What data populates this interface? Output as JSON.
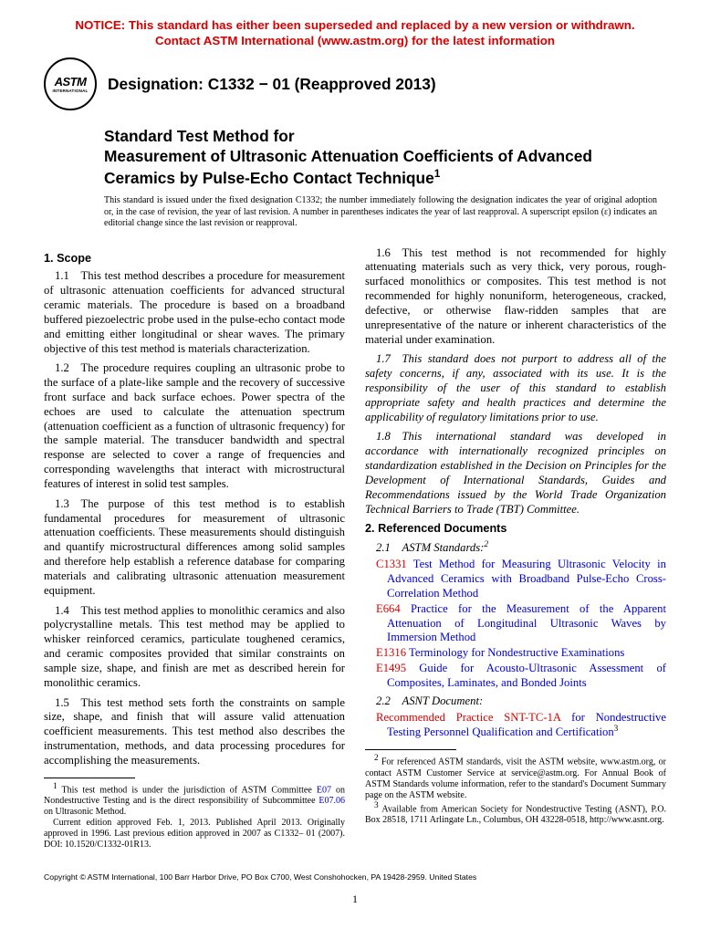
{
  "notice": {
    "line1": "NOTICE: This standard has either been superseded and replaced by a new version or withdrawn.",
    "line2": "Contact ASTM International (www.astm.org) for the latest information"
  },
  "logo": {
    "main": "ASTM",
    "sub": "INTERNATIONAL"
  },
  "designation": "Designation: C1332 − 01 (Reapproved 2013)",
  "title": {
    "pre": "Standard Test Method for",
    "main": "Measurement of Ultrasonic Attenuation Coefficients of Advanced Ceramics by Pulse-Echo Contact Technique",
    "sup": "1"
  },
  "issuance": "This standard is issued under the fixed designation C1332; the number immediately following the designation indicates the year of original adoption or, in the case of revision, the year of last revision. A number in parentheses indicates the year of last reapproval. A superscript epsilon (ε) indicates an editorial change since the last revision or reapproval.",
  "sections": {
    "scope_heading": "1. Scope",
    "p1_1": "1.1 This test method describes a procedure for measurement of ultrasonic attenuation coefficients for advanced structural ceramic materials. The procedure is based on a broadband buffered piezoelectric probe used in the pulse-echo contact mode and emitting either longitudinal or shear waves. The primary objective of this test method is materials characterization.",
    "p1_2": "1.2 The procedure requires coupling an ultrasonic probe to the surface of a plate-like sample and the recovery of successive front surface and back surface echoes. Power spectra of the echoes are used to calculate the attenuation spectrum (attenuation coefficient as a function of ultrasonic frequency) for the sample material. The transducer bandwidth and spectral response are selected to cover a range of frequencies and corresponding wavelengths that interact with microstructural features of interest in solid test samples.",
    "p1_3": "1.3 The purpose of this test method is to establish fundamental procedures for measurement of ultrasonic attenuation coefficients. These measurements should distinguish and quantify microstructural differences among solid samples and therefore help establish a reference database for comparing materials and calibrating ultrasonic attenuation measurement equipment.",
    "p1_4": "1.4 This test method applies to monolithic ceramics and also polycrystalline metals. This test method may be applied to whisker reinforced ceramics, particulate toughened ceramics, and ceramic composites provided that similar constraints on sample size, shape, and finish are met as described herein for monolithic ceramics.",
    "p1_5": "1.5 This test method sets forth the constraints on sample size, shape, and finish that will assure valid attenuation coefficient measurements. This test method also describes the instrumentation, methods, and data processing procedures for accomplishing the measurements.",
    "p1_6": "1.6 This test method is not recommended for highly attenuating materials such as very thick, very porous, rough-surfaced monolithics or composites. This test method is not recommended for highly nonuniform, heterogeneous, cracked, defective, or otherwise flaw-ridden samples that are unrepresentative of the nature or inherent characteristics of the material under examination.",
    "p1_7": "1.7 This standard does not purport to address all of the safety concerns, if any, associated with its use. It is the responsibility of the user of this standard to establish appropriate safety and health practices and determine the applicability of regulatory limitations prior to use.",
    "p1_8": "1.8 This international standard was developed in accordance with internationally recognized principles on standardization established in the Decision on Principles for the Development of International Standards, Guides and Recommendations issued by the World Trade Organization Technical Barriers to Trade (TBT) Committee.",
    "refdocs_heading": "2. Referenced Documents",
    "astm_sub": "2.1 ASTM Standards:",
    "astm_sup": "2",
    "asnt_sub": "2.2 ASNT Document:",
    "refs": [
      {
        "code": "C1331",
        "text": " Test Method for Measuring Ultrasonic Velocity in Advanced Ceramics with Broadband Pulse-Echo Cross-Correlation Method"
      },
      {
        "code": "E664",
        "text": " Practice for the Measurement of the Apparent Attenuation of Longitudinal Ultrasonic Waves by Immersion Method"
      },
      {
        "code": "E1316",
        "text": " Terminology for Nondestructive Examinations"
      },
      {
        "code": "E1495",
        "text": " Guide for Acousto-Ultrasonic Assessment of Composites, Laminates, and Bonded Joints"
      }
    ],
    "asnt_ref": {
      "code": "Recommended Practice SNT-TC-1A",
      "text": " for Nondestructive Testing Personnel Qualification and Certification",
      "sup": "3"
    }
  },
  "footnotes": {
    "f1_a": "This test method is under the jurisdiction of ASTM Committee ",
    "f1_link1": "E07",
    "f1_b": " on Nondestructive Testing and is the direct responsibility of Subcommittee ",
    "f1_link2": "E07.06",
    "f1_c": " on Ultrasonic Method.",
    "f1_para2": "Current edition approved Feb. 1, 2013. Published April 2013. Originally approved in 1996. Last previous edition approved in 2007 as C1332– 01 (2007). DOI: 10.1520/C1332-01R13.",
    "f2": "For referenced ASTM standards, visit the ASTM website, www.astm.org, or contact ASTM Customer Service at service@astm.org. For Annual Book of ASTM Standards volume information, refer to the standard's Document Summary page on the ASTM website.",
    "f3": "Available from American Society for Nondestructive Testing (ASNT), P.O. Box 28518, 1711 Arlingate Ln., Columbus, OH 43228-0518, http://www.asnt.org."
  },
  "copyright": "Copyright © ASTM International, 100 Barr Harbor Drive, PO Box C700, West Conshohocken, PA 19428-2959. United States",
  "page_num": "1"
}
